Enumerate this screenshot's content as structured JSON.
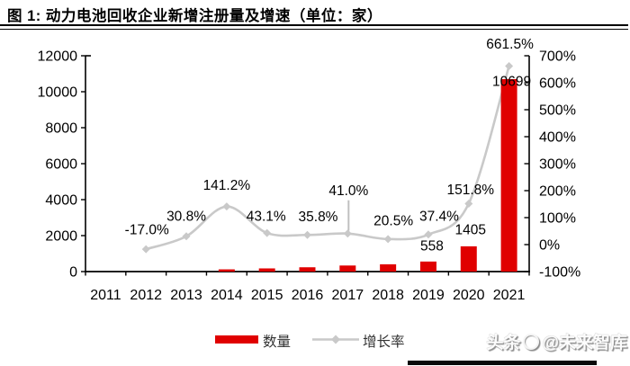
{
  "title": "图 1: 动力电池回收企业新增注册量及增速（单位：家）",
  "chart_data": {
    "type": "combo",
    "title": "动力电池回收企业新增注册量及增速（单位：家）",
    "categories": [
      "2011",
      "2012",
      "2013",
      "2014",
      "2015",
      "2016",
      "2017",
      "2018",
      "2019",
      "2020",
      "2021"
    ],
    "series": [
      {
        "name": "数量",
        "chart_type": "bar",
        "axis": "left",
        "color": "#e00000",
        "values": [
          47,
          39,
          51,
          123,
          176,
          239,
          337,
          406,
          558,
          1405,
          10699
        ],
        "point_labels": [
          null,
          null,
          null,
          null,
          null,
          null,
          null,
          null,
          "558",
          "1405",
          "10699"
        ]
      },
      {
        "name": "增长率",
        "chart_type": "line",
        "axis": "right",
        "color": "#c9c9c9",
        "values": [
          null,
          -17.0,
          30.8,
          141.2,
          43.1,
          35.8,
          41.0,
          20.5,
          37.4,
          151.8,
          661.5
        ],
        "point_labels": [
          null,
          "-17.0%",
          "30.8%",
          "141.2%",
          "43.1%",
          "35.8%",
          "41.0%",
          "20.5%",
          "37.4%",
          "151.8%",
          "661.5%"
        ]
      }
    ],
    "left_axis": {
      "min": 0,
      "max": 12000,
      "step": 2000,
      "tick_labels": [
        "0",
        "2000",
        "4000",
        "6000",
        "8000",
        "10000",
        "12000"
      ]
    },
    "right_axis": {
      "min": -100,
      "max": 700,
      "step": 100,
      "tick_labels": [
        "-100%",
        "0%",
        "100%",
        "200%",
        "300%",
        "400%",
        "500%",
        "600%",
        "700%"
      ]
    },
    "grid": false,
    "legend_position": "bottom"
  },
  "watermark": {
    "prefix": "头条",
    "suffix": "@未来智库"
  },
  "colors": {
    "bar": "#e00000",
    "line": "#c9c9c9",
    "axis": "#000000",
    "footer_bar": "#0a0a0a"
  }
}
